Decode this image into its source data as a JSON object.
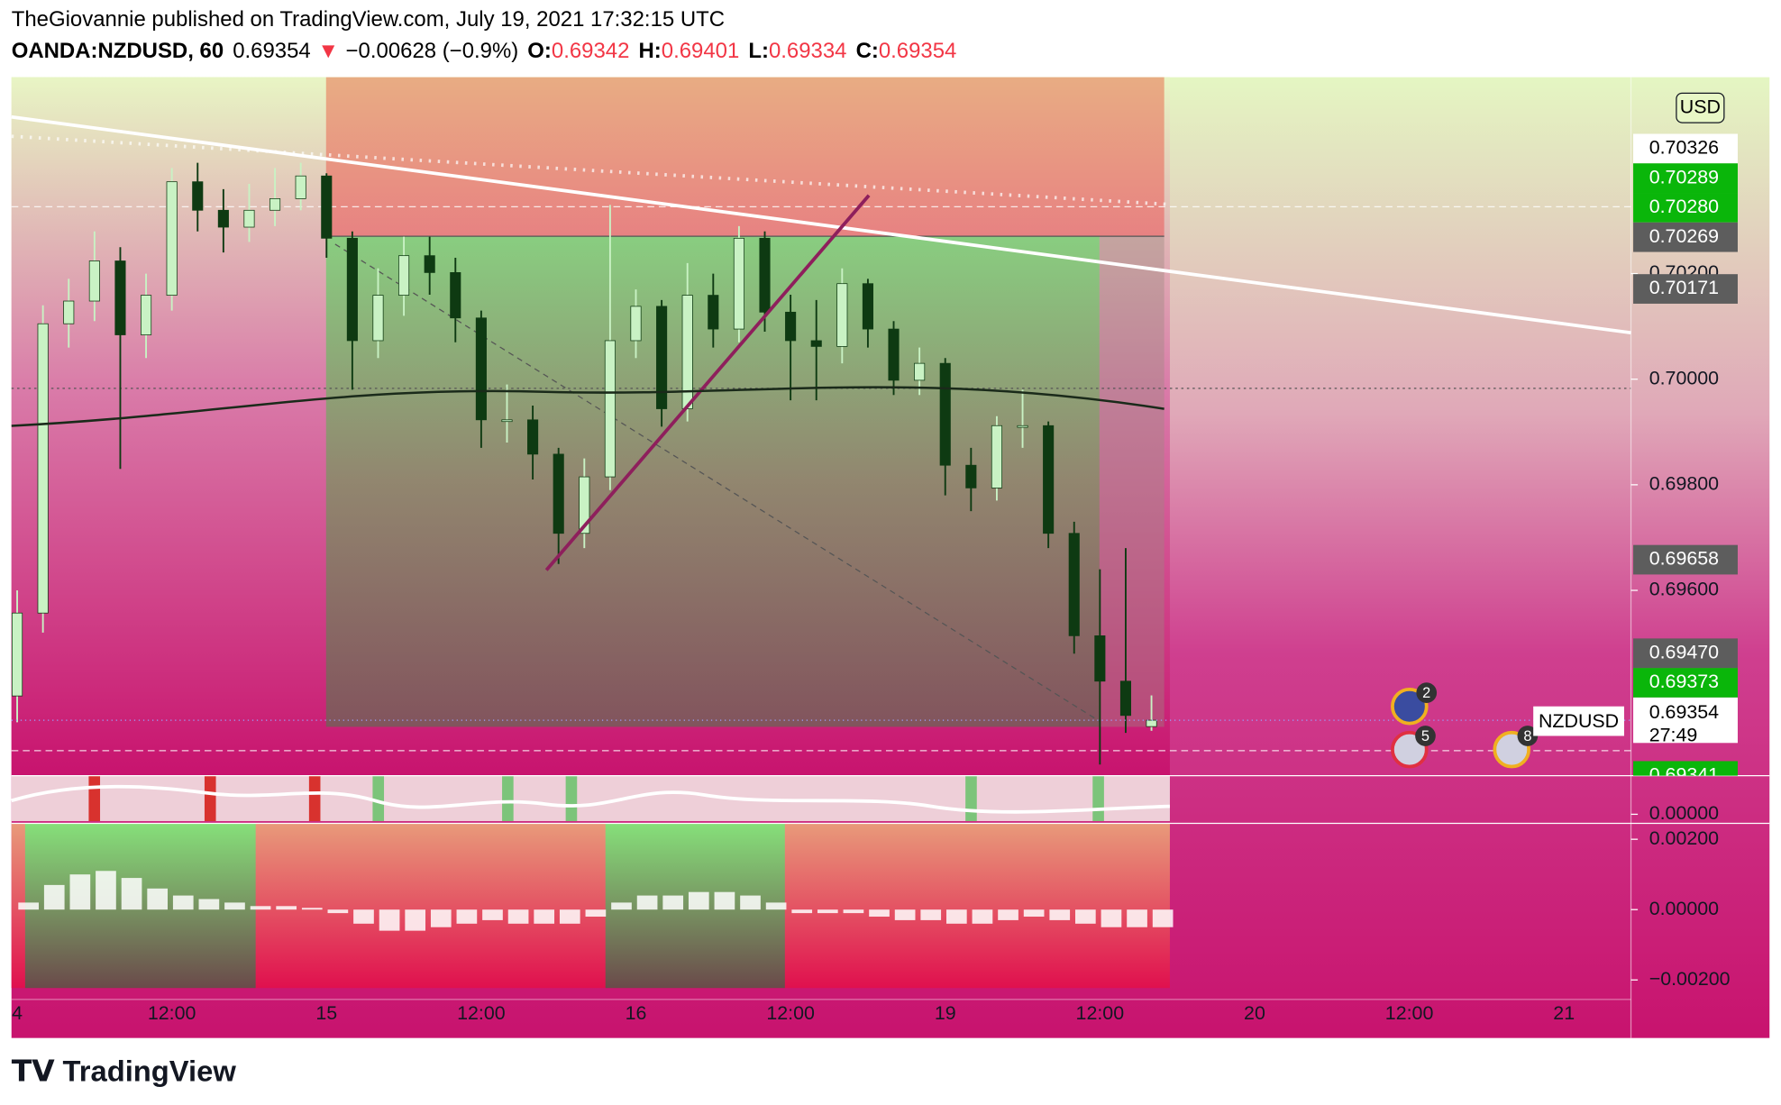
{
  "header": {
    "publisher": "TheGiovannie published on TradingView.com, July 19, 2021 17:32:15 UTC",
    "symbol": "OANDA:NZDUSD, 60",
    "last": "0.69354",
    "arrow": "▼",
    "change": "−0.00628 (−0.9%)",
    "ohlc": [
      {
        "key": "O:",
        "value": "0.69342"
      },
      {
        "key": "H:",
        "value": "0.69401"
      },
      {
        "key": "L:",
        "value": "0.69334"
      },
      {
        "key": "C:",
        "value": "0.69354"
      }
    ],
    "currency": "USD",
    "ticker_tag": "NZDUSD",
    "countdown": "27:49",
    "events": [
      "2",
      "5",
      "8"
    ],
    "logo": "TradingView"
  },
  "chart_data": [
    {
      "type": "candlestick",
      "ylim": [
        0.69249,
        0.70572
      ],
      "yticks": [
        {
          "value": 0.702,
          "label": "0.70200"
        },
        {
          "value": 0.7,
          "label": "0.70000"
        },
        {
          "value": 0.698,
          "label": "0.69800"
        },
        {
          "value": 0.696,
          "label": "0.69600"
        }
      ],
      "x_labels": [
        "4",
        "12:00",
        "15",
        "12:00",
        "16",
        "12:00",
        "19",
        "12:00",
        "20",
        "12:00",
        "21"
      ],
      "up_color": "#c9f2c4",
      "down_color": "#0e3a12",
      "open": [
        0.694,
        0.69557,
        0.70105,
        0.70148,
        0.70224,
        0.70084,
        0.70159,
        0.70374,
        0.7032,
        0.70288,
        0.7032,
        0.70342,
        0.70385,
        0.70267,
        0.70073,
        0.70159,
        0.70234,
        0.70202,
        0.70116,
        0.69923,
        0.69923,
        0.69858,
        0.69708,
        0.69815,
        0.70073,
        0.70138,
        0.69944,
        0.70159,
        0.70095,
        0.70267,
        0.70127,
        0.70073,
        0.70062,
        0.70181,
        0.70095,
        0.69998,
        0.7003,
        0.69837,
        0.69794,
        0.69912,
        0.69912,
        0.69708,
        0.69514,
        0.69428,
        0.69342
      ],
      "high": [
        0.696,
        0.7014,
        0.7019,
        0.7028,
        0.7025,
        0.702,
        0.704,
        0.7041,
        0.7036,
        0.7037,
        0.704,
        0.7041,
        0.7039,
        0.7028,
        0.7021,
        0.7027,
        0.7027,
        0.7023,
        0.7013,
        0.6999,
        0.6995,
        0.6987,
        0.6985,
        0.7033,
        0.7017,
        0.7015,
        0.7022,
        0.702,
        0.7029,
        0.7028,
        0.7016,
        0.7015,
        0.7021,
        0.7019,
        0.7011,
        0.7006,
        0.7004,
        0.6987,
        0.6993,
        0.6998,
        0.6992,
        0.6973,
        0.6964,
        0.6968,
        0.69401
      ],
      "low": [
        0.6935,
        0.6952,
        0.7006,
        0.7011,
        0.6983,
        0.7004,
        0.7013,
        0.7028,
        0.7024,
        0.7026,
        0.7029,
        0.7032,
        0.7023,
        0.6998,
        0.7004,
        0.7012,
        0.7016,
        0.7007,
        0.6987,
        0.6988,
        0.6981,
        0.6965,
        0.6968,
        0.6979,
        0.7004,
        0.6991,
        0.6992,
        0.7006,
        0.7007,
        0.7009,
        0.6996,
        0.6996,
        0.7003,
        0.7006,
        0.6997,
        0.6997,
        0.6978,
        0.6975,
        0.6977,
        0.6987,
        0.6968,
        0.6948,
        0.6927,
        0.6933,
        0.69334
      ],
      "close": [
        0.69557,
        0.70105,
        0.70148,
        0.70224,
        0.70084,
        0.70159,
        0.70374,
        0.7032,
        0.70288,
        0.7032,
        0.70342,
        0.70385,
        0.70267,
        0.70073,
        0.70159,
        0.70234,
        0.70202,
        0.70116,
        0.69923,
        0.69923,
        0.69858,
        0.69708,
        0.69815,
        0.70073,
        0.70138,
        0.69944,
        0.70159,
        0.70095,
        0.70267,
        0.70127,
        0.70073,
        0.70062,
        0.70181,
        0.70095,
        0.69998,
        0.7003,
        0.69837,
        0.69794,
        0.69912,
        0.69912,
        0.69708,
        0.69514,
        0.69428,
        0.69363,
        0.69354
      ],
      "price_labels": [
        {
          "value": 0.70326,
          "label": "0.70326",
          "bg": "#ffffff",
          "fg": "#000000"
        },
        {
          "value": 0.70289,
          "label": "0.70289",
          "bg": "#0ab60a",
          "fg": "#ffffff"
        },
        {
          "value": 0.7028,
          "label": "0.70280",
          "bg": "#0ab60a",
          "fg": "#ffffff"
        },
        {
          "value": 0.70269,
          "label": "0.70269",
          "bg": "#5d5d5d",
          "fg": "#ffffff"
        },
        {
          "value": 0.70171,
          "label": "0.70171",
          "bg": "#5d5d5d",
          "fg": "#ffffff"
        },
        {
          "value": 0.69658,
          "label": "0.69658",
          "bg": "#5d5d5d",
          "fg": "#ffffff"
        },
        {
          "value": 0.6947,
          "label": "0.69470",
          "bg": "#5d5d5d",
          "fg": "#ffffff"
        },
        {
          "value": 0.69373,
          "label": "0.69373",
          "bg": "#0ab60a",
          "fg": "#ffffff"
        },
        {
          "value": 0.69354,
          "label": "0.69354",
          "bg": "#ffffff",
          "fg": "#000000",
          "current": true
        },
        {
          "value": 0.69341,
          "label": "0.69341",
          "bg": "#0ab60a",
          "fg": "#ffffff"
        }
      ]
    },
    {
      "type": "bar",
      "ylim": [
        -0.00223,
        0.00242
      ],
      "yticks": [
        {
          "value": 0.002,
          "label": "0.00200"
        },
        {
          "value": 0,
          "label": "0.00000"
        },
        {
          "value": -0.002,
          "label": "−0.00200"
        }
      ],
      "color": "#ffffff",
      "values": [
        0.0002,
        0.0007,
        0.001,
        0.0011,
        0.0009,
        0.0006,
        0.0004,
        0.0003,
        0.0002,
        0.0001,
        0.0001,
        5e-05,
        -0.0001,
        -0.0004,
        -0.0006,
        -0.0006,
        -0.0005,
        -0.0004,
        -0.0003,
        -0.0004,
        -0.0004,
        -0.0004,
        -0.0002,
        0.0002,
        0.0004,
        0.0004,
        0.0005,
        0.0005,
        0.0004,
        0.0002,
        -0.0001,
        -0.0001,
        -0.0001,
        -0.0002,
        -0.0003,
        -0.0003,
        -0.0004,
        -0.0004,
        -0.0003,
        -0.0002,
        -0.0003,
        -0.0004,
        -0.0005,
        -0.0005,
        -0.0005
      ]
    },
    {
      "type": "oscillator",
      "yticks": [
        {
          "value": 0,
          "label": "0.00000"
        }
      ]
    }
  ]
}
